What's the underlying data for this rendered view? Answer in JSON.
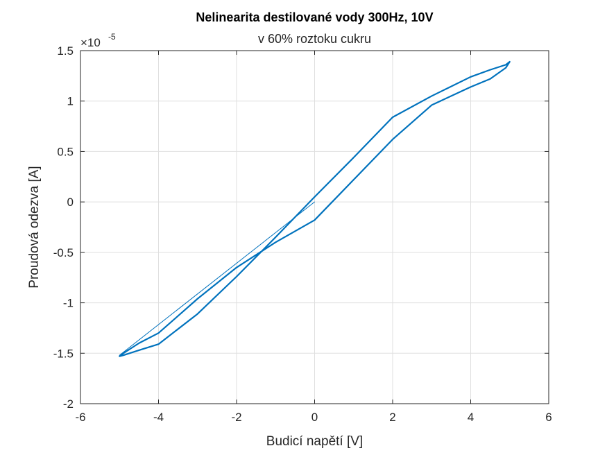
{
  "chart_data": {
    "type": "line",
    "title": "Nelinearita destilované vody 300Hz, 10V",
    "subtitle": "v 60% roztoku cukru",
    "xlabel": "Budicí napětí [V]",
    "ylabel": "Proudová odezva [A]",
    "xlim": [
      -6,
      6
    ],
    "ylim": [
      -2,
      1.5
    ],
    "y_multiplier": "×10",
    "y_exponent": "-5",
    "xticks": [
      -6,
      -4,
      -2,
      0,
      2,
      4,
      6
    ],
    "yticks": [
      -2,
      -1.5,
      -1,
      -0.5,
      0,
      0.5,
      1,
      1.5
    ],
    "xtick_labels": [
      "-6",
      "-4",
      "-2",
      "0",
      "2",
      "4",
      "6"
    ],
    "ytick_labels": [
      "-2",
      "-1.5",
      "-1",
      "-0.5",
      "0",
      "0.5",
      "1",
      "1.5"
    ],
    "grid": true,
    "line_color": "#0072BD",
    "series": [
      {
        "kind": "hysteresis-loop",
        "x": [
          5.0,
          4.9,
          4.5,
          4.0,
          3.0,
          2.0,
          1.0,
          0.0,
          -1.0,
          -2.0,
          -3.0,
          -4.0,
          -4.5,
          -4.9,
          -5.0,
          -4.9,
          -4.5,
          -4.0,
          -3.0,
          -2.0,
          -1.0,
          0.0,
          1.0,
          2.0,
          3.0,
          4.0,
          4.5,
          4.9,
          5.0
        ],
        "y": [
          1.39,
          1.36,
          1.31,
          1.24,
          1.05,
          0.84,
          0.44,
          0.05,
          -0.35,
          -0.74,
          -1.11,
          -1.41,
          -1.47,
          -1.52,
          -1.53,
          -1.5,
          -1.4,
          -1.3,
          -0.96,
          -0.65,
          -0.4,
          -0.18,
          0.22,
          0.62,
          0.96,
          1.14,
          1.22,
          1.33,
          1.39
        ]
      },
      {
        "kind": "startup-transient",
        "x": [
          0,
          -5.0
        ],
        "y": [
          0,
          -1.52
        ]
      }
    ]
  }
}
